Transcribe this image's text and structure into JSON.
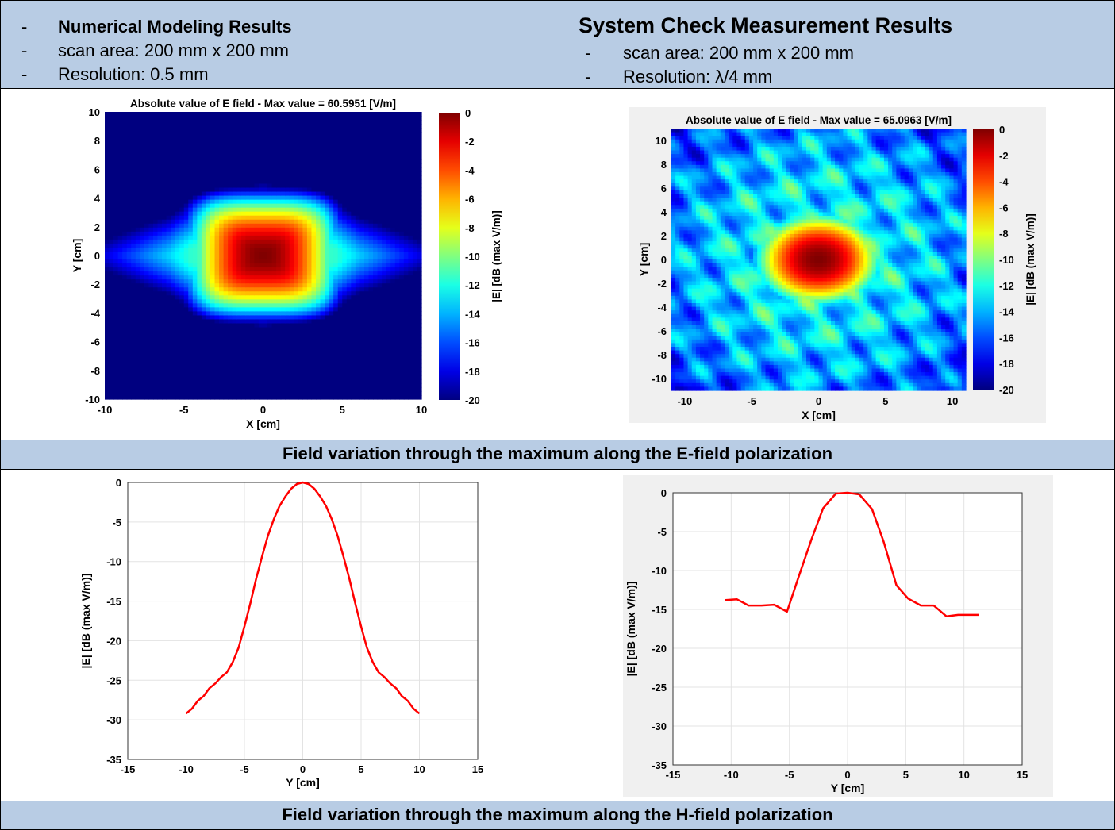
{
  "left_header": {
    "items": [
      {
        "dash": "-",
        "text": "Numerical Modeling Results",
        "bold": true
      },
      {
        "dash": "-",
        "text": "scan area: 200 mm x 200 mm",
        "bold": false
      },
      {
        "dash": "-",
        "text": "Resolution: 0.5 mm",
        "bold": false
      }
    ]
  },
  "right_header": {
    "title": "System Check Measurement Results",
    "items": [
      {
        "dash": "-",
        "text": "scan area: 200 mm x 200 mm"
      },
      {
        "dash": "-",
        "text": "Resolution: λ/4 mm"
      }
    ]
  },
  "banner_e": "Field variation through the maximum along the E-field polarization",
  "banner_h": "Field variation through the maximum along the H-field polarization",
  "colors": {
    "header_bg": "#b8cce4",
    "curve": "#ff0000",
    "field_bg": "#00008f"
  },
  "chart_data": [
    {
      "type": "heatmap",
      "title": "Absolute value of E field - Max value = 60.5951 [V/m]",
      "xlabel": "X [cm]",
      "ylabel": "Y [cm]",
      "colorbar_label": "|E| [dB (max V/m)]",
      "xlim": [
        -10,
        10
      ],
      "ylim": [
        -10,
        10
      ],
      "clim": [
        -20,
        0
      ],
      "xticks": [
        "-10",
        "-5",
        "0",
        "5",
        "10"
      ],
      "yticks": [
        "10",
        "8",
        "6",
        "4",
        "2",
        "0",
        "-2",
        "-4",
        "-6",
        "-8",
        "-10"
      ],
      "cticks": [
        "0",
        "-2",
        "-4",
        "-6",
        "-8",
        "-10",
        "-12",
        "-14",
        "-16",
        "-18",
        "-20"
      ],
      "peak": {
        "x": 0,
        "y": 0,
        "value": 0
      },
      "colormap": "jet"
    },
    {
      "type": "heatmap",
      "title": "Absolute value of E field - Max value = 65.0963 [V/m]",
      "xlabel": "X [cm]",
      "ylabel": "Y [cm]",
      "colorbar_label": "|E| [dB (max V/m)]",
      "xlim": [
        -11,
        11
      ],
      "ylim": [
        -11,
        11
      ],
      "clim": [
        -20,
        0
      ],
      "xticks": [
        "-10",
        "-5",
        "0",
        "5",
        "10"
      ],
      "yticks": [
        "10",
        "8",
        "6",
        "4",
        "2",
        "0",
        "-2",
        "-4",
        "-6",
        "-8",
        "-10"
      ],
      "cticks": [
        "0",
        "-2",
        "-4",
        "-6",
        "-8",
        "-10",
        "-12",
        "-14",
        "-16",
        "-18",
        "-20"
      ],
      "peak": {
        "x": 0,
        "y": 0,
        "value": 0
      },
      "colormap": "jet"
    },
    {
      "type": "line",
      "title": "",
      "xlabel": "Y [cm]",
      "ylabel": "|E| [dB (max V/m)]",
      "xlim": [
        -15,
        15
      ],
      "ylim": [
        -35,
        0
      ],
      "xticks": [
        "-15",
        "-10",
        "-5",
        "0",
        "5",
        "10",
        "15"
      ],
      "yticks": [
        "0",
        "-5",
        "-10",
        "-15",
        "-20",
        "-25",
        "-30",
        "-35"
      ],
      "grid": true,
      "x": [
        -10,
        -9.5,
        -9,
        -8.5,
        -8,
        -7.5,
        -7,
        -6.5,
        -6,
        -5.5,
        -5,
        -4.5,
        -4,
        -3.5,
        -3,
        -2.5,
        -2,
        -1.5,
        -1,
        -0.5,
        0,
        0.5,
        1,
        1.5,
        2,
        2.5,
        3,
        3.5,
        4,
        4.5,
        5,
        5.5,
        6,
        6.5,
        7,
        7.5,
        8,
        8.5,
        9,
        9.5,
        10
      ],
      "series": [
        {
          "values": [
            -29.2,
            -28.6,
            -27.6,
            -27.0,
            -26.0,
            -25.4,
            -24.6,
            -24.0,
            -22.7,
            -20.9,
            -18.2,
            -15.3,
            -12.2,
            -9.4,
            -6.8,
            -4.7,
            -3.0,
            -1.8,
            -0.8,
            -0.2,
            0,
            -0.2,
            -0.8,
            -1.8,
            -3.0,
            -4.7,
            -6.8,
            -9.4,
            -12.2,
            -15.3,
            -18.2,
            -20.9,
            -22.7,
            -24.0,
            -24.6,
            -25.4,
            -26.0,
            -27.0,
            -27.6,
            -28.6,
            -29.2
          ]
        }
      ]
    },
    {
      "type": "line",
      "title": "",
      "xlabel": "Y [cm]",
      "ylabel": "|E| [dB (max V/m)]",
      "xlim": [
        -15,
        15
      ],
      "ylim": [
        -35,
        0
      ],
      "xticks": [
        "-15",
        "-10",
        "-5",
        "0",
        "5",
        "10",
        "15"
      ],
      "yticks": [
        "0",
        "-5",
        "-10",
        "-15",
        "-20",
        "-25",
        "-30",
        "-35"
      ],
      "grid": true,
      "x": [
        -10.5,
        -9.5,
        -8.5,
        -7.4,
        -6.3,
        -5.2,
        -4.2,
        -3.1,
        -2.1,
        -1.0,
        0,
        1.0,
        2.1,
        3.1,
        4.2,
        5.2,
        6.3,
        7.4,
        8.5,
        9.5,
        10.5,
        11.3
      ],
      "series": [
        {
          "values": [
            -13.8,
            -13.7,
            -14.5,
            -14.5,
            -14.4,
            -15.3,
            -10.8,
            -6.0,
            -2.0,
            -0.1,
            0,
            -0.2,
            -2.1,
            -6.3,
            -11.9,
            -13.6,
            -14.5,
            -14.5,
            -15.9,
            -15.7,
            -15.7,
            -15.7
          ]
        }
      ]
    }
  ]
}
